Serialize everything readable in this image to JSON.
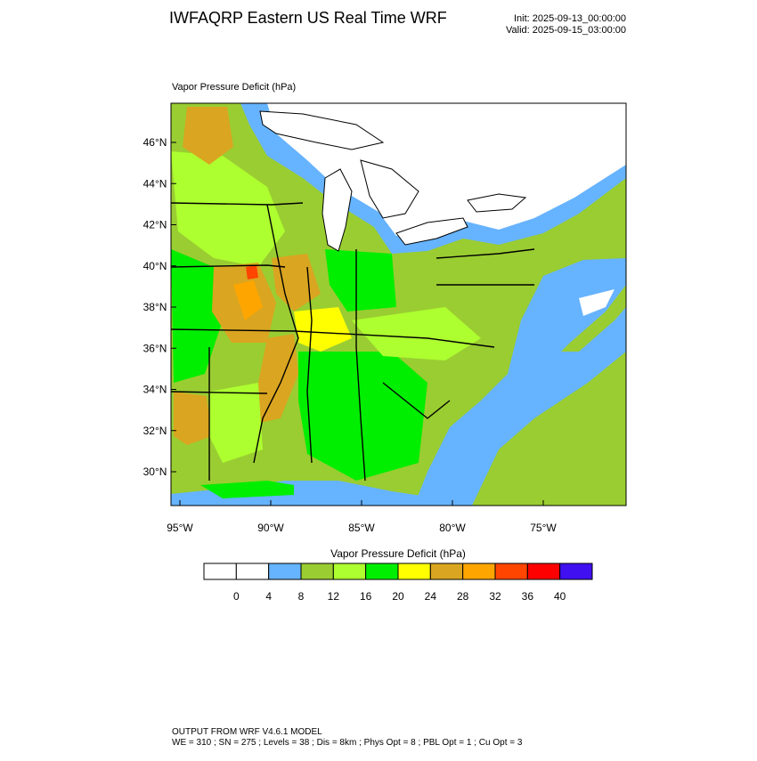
{
  "header": {
    "title": "IWFAQRP Eastern US Real Time WRF",
    "init": "Init: 2025-09-13_00:00:00",
    "valid": "Valid: 2025-09-15_03:00:00"
  },
  "map": {
    "label": "Vapor Pressure Deficit   (hPa)",
    "lat_ticks": [
      "46°N",
      "44°N",
      "42°N",
      "40°N",
      "38°N",
      "36°N",
      "34°N",
      "32°N",
      "30°N"
    ],
    "lon_ticks": [
      "95°W",
      "90°W",
      "85°W",
      "80°W",
      "75°W"
    ]
  },
  "colorbar": {
    "title": "Vapor Pressure Deficit  (hPa)",
    "colors": [
      "#ffffff",
      "#ffffff",
      "#66b3ff",
      "#9acd32",
      "#adff2f",
      "#00ee00",
      "#ffff00",
      "#daa520",
      "#ffa500",
      "#ff4500",
      "#ff0000",
      "#4010f0"
    ],
    "labels": [
      "0",
      "4",
      "8",
      "12",
      "16",
      "20",
      "24",
      "28",
      "32",
      "36",
      "40"
    ]
  },
  "footer": {
    "line1": "OUTPUT FROM WRF V4.6.1 MODEL",
    "line2": "WE = 310 ; SN = 275 ; Levels = 38 ; Dis = 8km ; Phys Opt = 8 ; PBL Opt = 1 ; Cu Opt = 3"
  }
}
